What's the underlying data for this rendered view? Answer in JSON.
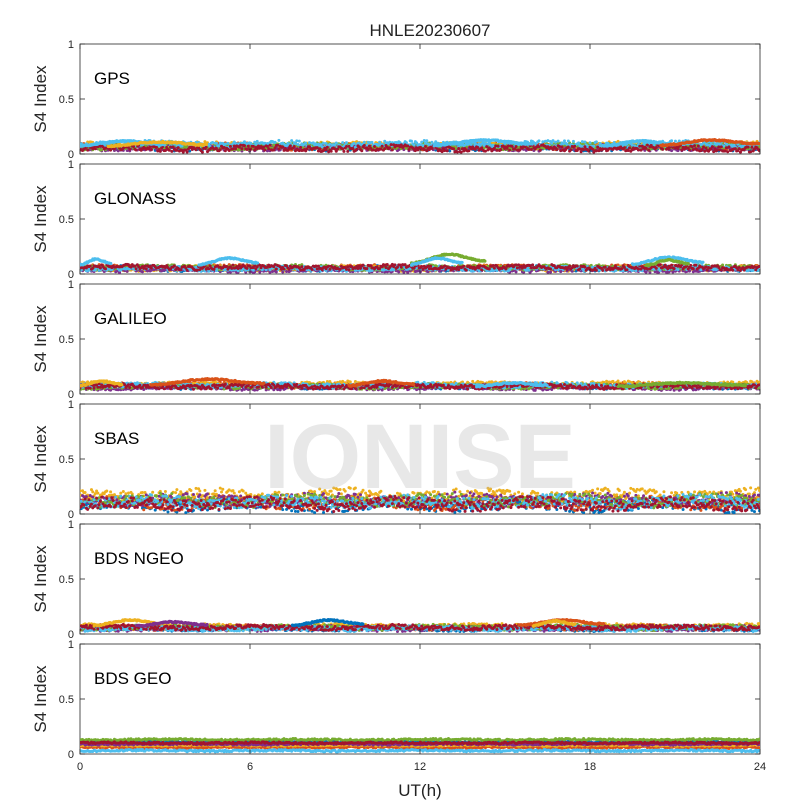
{
  "title": "HNLE20230607",
  "watermark": "IONISE",
  "chart_data": {
    "type": "scatter",
    "title": "HNLE20230607",
    "xlabel": "UT(h)",
    "ylabel": "S4 Index",
    "xlim": [
      0,
      24
    ],
    "ylim": [
      0,
      1
    ],
    "xticks": [
      0,
      6,
      12,
      18,
      24
    ],
    "yticks": [
      0,
      0.5,
      1
    ],
    "ytick_labels": [
      "0",
      "0.5",
      "1"
    ],
    "grid": false,
    "series_colors": [
      "#0072BD",
      "#D95319",
      "#EDB120",
      "#7E2F8E",
      "#77AC30",
      "#4DBEEE",
      "#A2142F"
    ],
    "panels": [
      {
        "label": "GPS",
        "base_levels": [
          0.06,
          0.07,
          0.08,
          0.06,
          0.07,
          0.09,
          0.05
        ],
        "spread": 0.025,
        "arcs": [
          {
            "x": [
              0.0,
              3.0
            ],
            "peak": 0.13,
            "color": "#4DBEEE"
          },
          {
            "x": [
              1.0,
              4.5
            ],
            "peak": 0.12,
            "color": "#EDB120"
          },
          {
            "x": [
              12.5,
              16.0
            ],
            "peak": 0.14,
            "color": "#4DBEEE"
          },
          {
            "x": [
              18.5,
              21.0
            ],
            "peak": 0.13,
            "color": "#4DBEEE"
          },
          {
            "x": [
              20.5,
              24.0
            ],
            "peak": 0.14,
            "color": "#D95319"
          }
        ]
      },
      {
        "label": "GLONASS",
        "base_levels": [
          0.05,
          0.06,
          0.05,
          0.04,
          0.06,
          0.05,
          0.06
        ],
        "spread": 0.02,
        "arcs": [
          {
            "x": [
              0.0,
              1.1
            ],
            "peak": 0.15,
            "color": "#4DBEEE"
          },
          {
            "x": [
              4.2,
              6.3
            ],
            "peak": 0.16,
            "color": "#4DBEEE"
          },
          {
            "x": [
              11.7,
              14.3
            ],
            "peak": 0.2,
            "color": "#77AC30"
          },
          {
            "x": [
              11.7,
              13.5
            ],
            "peak": 0.16,
            "color": "#4DBEEE"
          },
          {
            "x": [
              19.5,
              22.0
            ],
            "peak": 0.17,
            "color": "#4DBEEE"
          },
          {
            "x": [
              20.0,
              21.5
            ],
            "peak": 0.14,
            "color": "#77AC30"
          }
        ]
      },
      {
        "label": "GALILEO",
        "base_levels": [
          0.07,
          0.08,
          0.09,
          0.06,
          0.07,
          0.08,
          0.07
        ],
        "spread": 0.02,
        "arcs": [
          {
            "x": [
              0.0,
              1.5
            ],
            "peak": 0.13,
            "color": "#EDB120"
          },
          {
            "x": [
              2.5,
              6.5
            ],
            "peak": 0.15,
            "color": "#D95319"
          },
          {
            "x": [
              9.5,
              11.8
            ],
            "peak": 0.13,
            "color": "#D95319"
          },
          {
            "x": [
              14.0,
              16.5
            ],
            "peak": 0.11,
            "color": "#4DBEEE"
          },
          {
            "x": [
              19.0,
              23.5
            ],
            "peak": 0.11,
            "color": "#77AC30"
          }
        ]
      },
      {
        "label": "SBAS",
        "base_levels": [
          0.08,
          0.1,
          0.17,
          0.13,
          0.12,
          0.11,
          0.09
        ],
        "spread": 0.05,
        "arcs": []
      },
      {
        "label": "BDS NGEO",
        "base_levels": [
          0.05,
          0.06,
          0.07,
          0.05,
          0.06,
          0.05,
          0.06
        ],
        "spread": 0.02,
        "arcs": [
          {
            "x": [
              0.5,
              3.0
            ],
            "peak": 0.14,
            "color": "#EDB120"
          },
          {
            "x": [
              2.0,
              4.5
            ],
            "peak": 0.12,
            "color": "#7E2F8E"
          },
          {
            "x": [
              7.5,
              10.0
            ],
            "peak": 0.14,
            "color": "#0072BD"
          },
          {
            "x": [
              15.5,
              18.5
            ],
            "peak": 0.14,
            "color": "#D95319"
          },
          {
            "x": [
              16.0,
              17.5
            ],
            "peak": 0.13,
            "color": "#EDB120"
          }
        ]
      },
      {
        "label": "BDS GEO",
        "base_levels": [
          0.11,
          0.06,
          0.08,
          0.09,
          0.13,
          0.03,
          0.1
        ],
        "spread": 0.008,
        "arcs": []
      }
    ]
  }
}
